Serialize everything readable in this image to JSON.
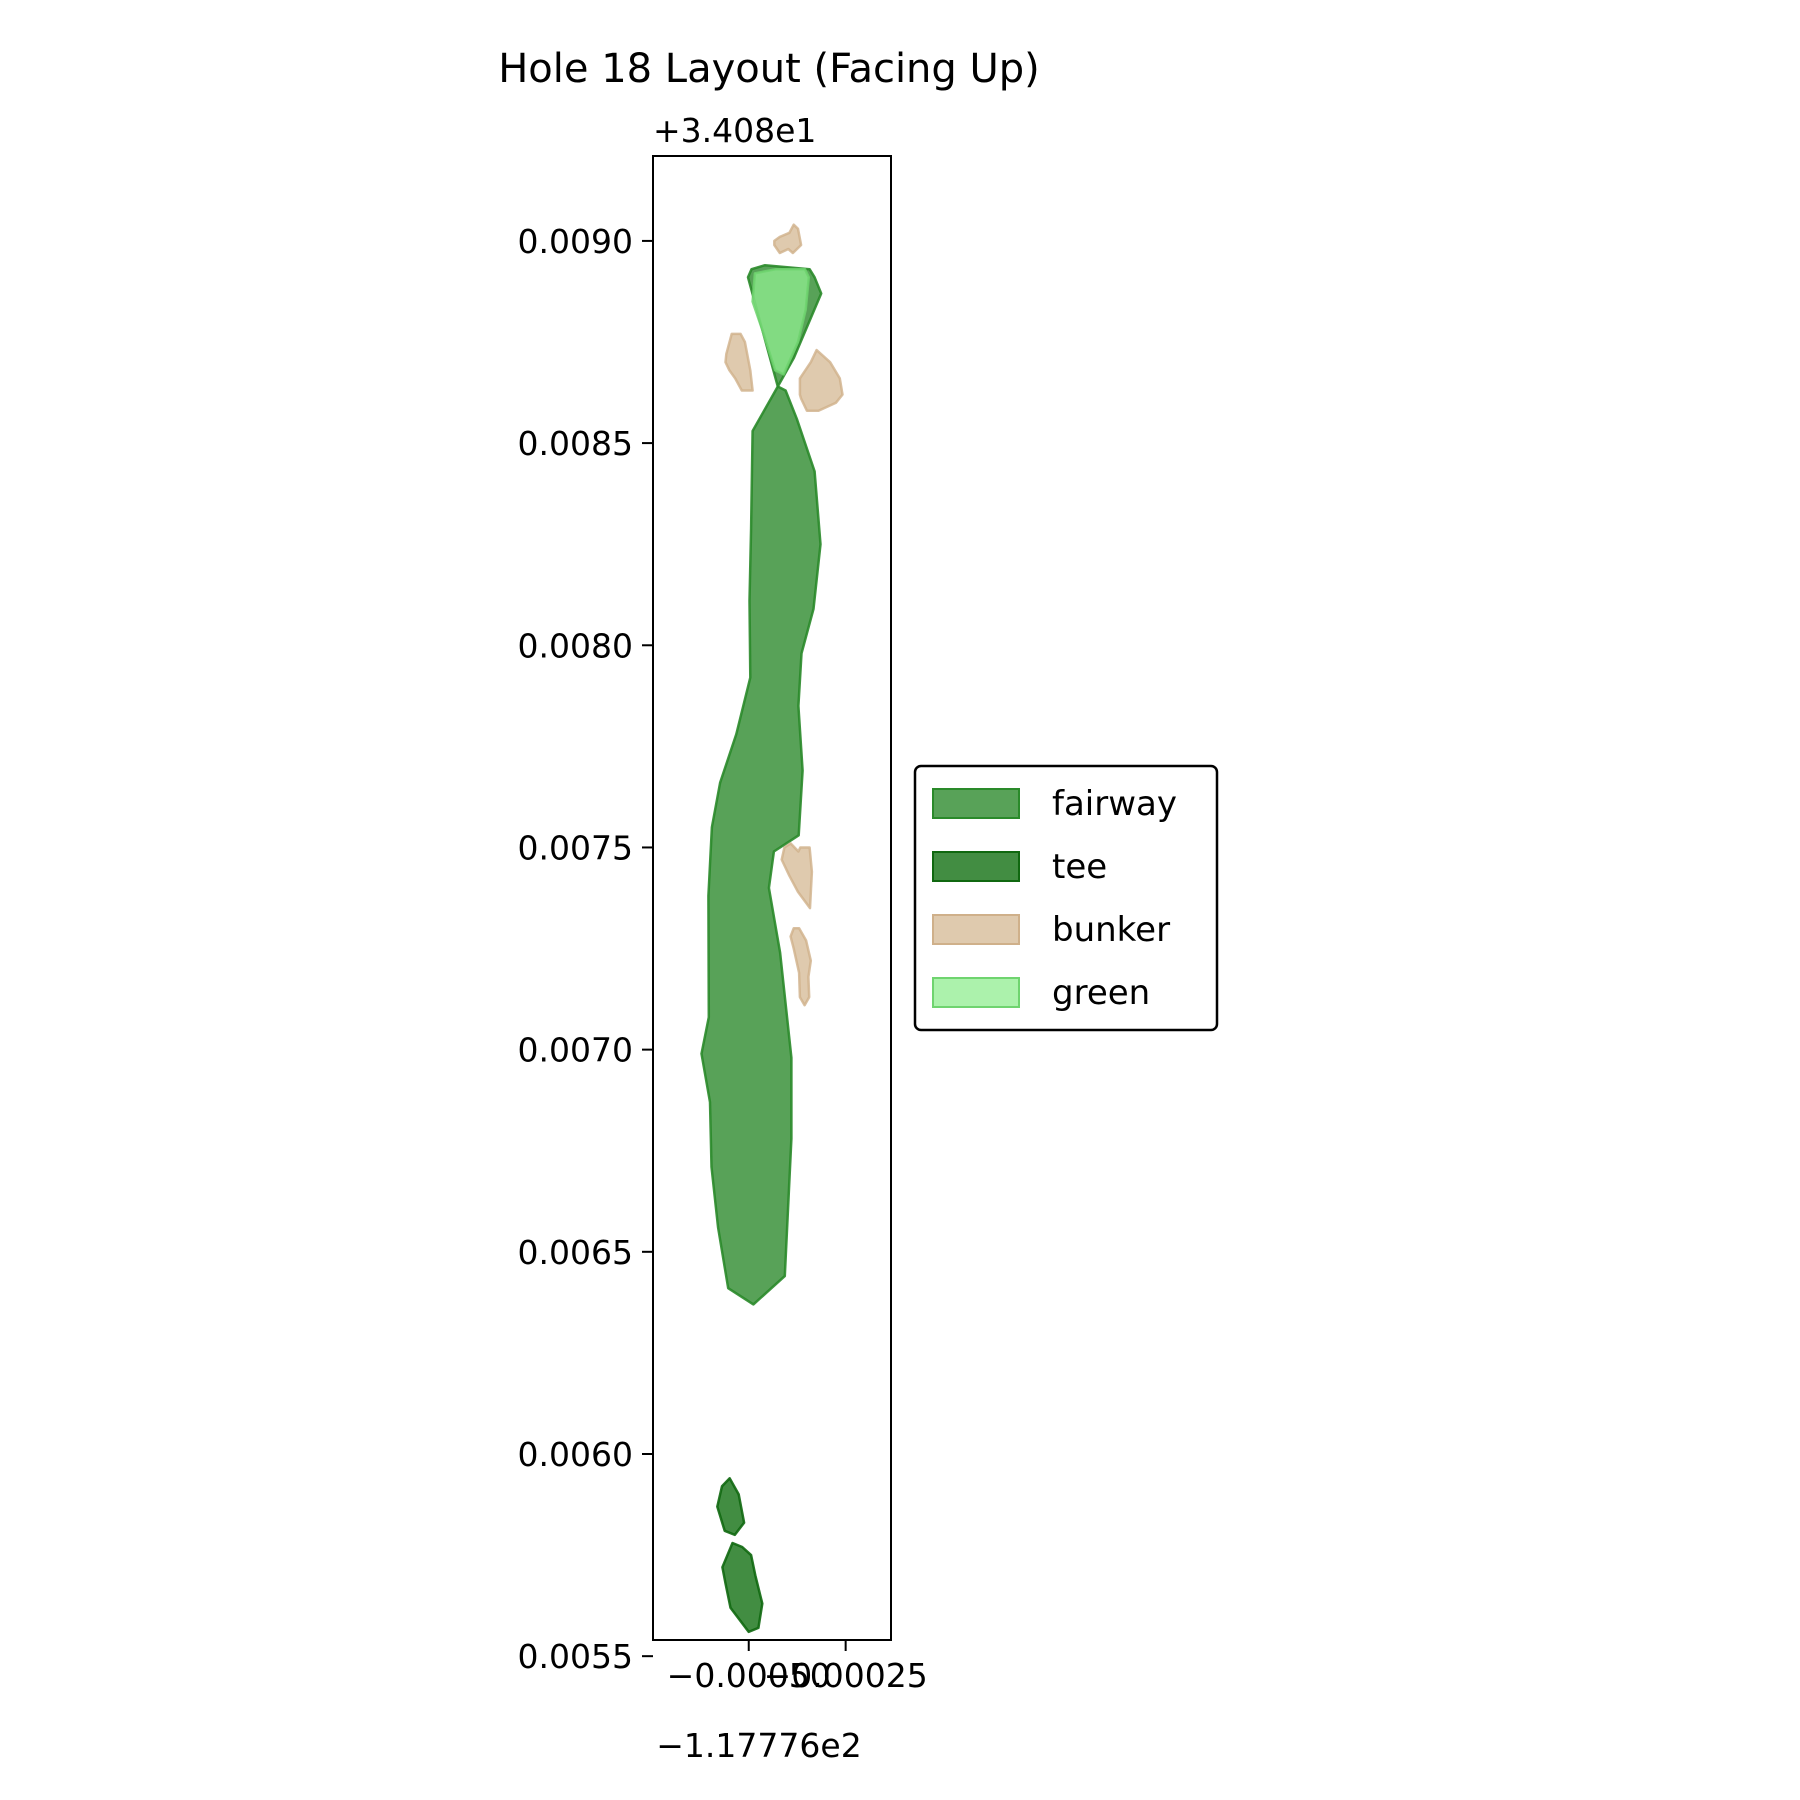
{
  "chart_data": {
    "type": "map",
    "title": "Hole 18 Layout (Facing Up)",
    "xlabel": "",
    "ylabel": "",
    "x_offset_label": "−1.17776e2",
    "y_offset_label": "+3.408e1",
    "x_ticks": [
      {
        "value": -0.0005,
        "label": "−0.00050"
      },
      {
        "value": -0.00025,
        "label": "−0.00025"
      }
    ],
    "y_ticks": [
      {
        "value": 0.0055,
        "label": "0.0055"
      },
      {
        "value": 0.006,
        "label": "0.0060"
      },
      {
        "value": 0.0065,
        "label": "0.0065"
      },
      {
        "value": 0.007,
        "label": "0.0070"
      },
      {
        "value": 0.0075,
        "label": "0.0075"
      },
      {
        "value": 0.008,
        "label": "0.0080"
      },
      {
        "value": 0.0085,
        "label": "0.0085"
      },
      {
        "value": 0.009,
        "label": "0.0090"
      }
    ],
    "xlim": [
      -0.000747,
      -0.000133
    ],
    "ylim": [
      0.00554,
      0.00921
    ],
    "legend_position": "center right (outside plot)",
    "legend": [
      {
        "label": "fairway",
        "color": "#2e8b2e",
        "alpha": 0.8
      },
      {
        "label": "tee",
        "color": "#137013",
        "alpha": 0.8
      },
      {
        "label": "bunker",
        "color": "#d2b48c",
        "alpha": 0.7
      },
      {
        "label": "green",
        "color": "#90ee90",
        "alpha": 0.75
      }
    ],
    "shapes": [
      {
        "type": "fairway",
        "coords": [
          [
            -0.000425,
            0.00864
          ],
          [
            -0.00049,
            0.00853
          ],
          [
            -0.000494,
            0.00829
          ],
          [
            -0.000498,
            0.00811
          ],
          [
            -0.000496,
            0.00792
          ],
          [
            -0.000532,
            0.00778
          ],
          [
            -0.000574,
            0.00766
          ],
          [
            -0.000595,
            0.00755
          ],
          [
            -0.000604,
            0.00738
          ],
          [
            -0.000603,
            0.00708
          ],
          [
            -0.000622,
            0.00699
          ],
          [
            -0.0006,
            0.00687
          ],
          [
            -0.000596,
            0.00671
          ],
          [
            -0.000579,
            0.00656
          ],
          [
            -0.000553,
            0.00641
          ],
          [
            -0.000488,
            0.00637
          ],
          [
            -0.000407,
            0.00644
          ],
          [
            -0.00039,
            0.00678
          ],
          [
            -0.00039,
            0.00698
          ],
          [
            -0.000419,
            0.00724
          ],
          [
            -0.000448,
            0.0074
          ],
          [
            -0.000435,
            0.00749
          ],
          [
            -0.000371,
            0.00753
          ],
          [
            -0.000361,
            0.00769
          ],
          [
            -0.000372,
            0.00785
          ],
          [
            -0.000364,
            0.00798
          ],
          [
            -0.000333,
            0.00809
          ],
          [
            -0.000315,
            0.00825
          ],
          [
            -0.00033,
            0.00843
          ],
          [
            -0.000376,
            0.00856
          ],
          [
            -0.000405,
            0.00863
          ],
          [
            -0.000425,
            0.00864
          ]
        ]
      },
      {
        "type": "fairway",
        "coords": [
          [
            -0.000425,
            0.00864
          ],
          [
            -0.000502,
            0.00891
          ],
          [
            -0.000493,
            0.00893
          ],
          [
            -0.000458,
            0.00894
          ],
          [
            -0.000343,
            0.00893
          ],
          [
            -0.00033,
            0.00891
          ],
          [
            -0.000313,
            0.00887
          ],
          [
            -0.000384,
            0.00871
          ],
          [
            -0.000425,
            0.00864
          ]
        ]
      },
      {
        "type": "green",
        "coords": [
          [
            -0.000432,
            0.00868
          ],
          [
            -0.000465,
            0.00878
          ],
          [
            -0.00049,
            0.00885
          ],
          [
            -0.000484,
            0.00892
          ],
          [
            -0.00043,
            0.00893
          ],
          [
            -0.000355,
            0.00893
          ],
          [
            -0.000345,
            0.00891
          ],
          [
            -0.000353,
            0.00883
          ],
          [
            -0.000373,
            0.00875
          ],
          [
            -0.00041,
            0.00867
          ],
          [
            -0.000432,
            0.00868
          ]
        ]
      },
      {
        "type": "bunker",
        "coords": [
          [
            -0.000398,
            0.00898
          ],
          [
            -0.000386,
            0.00897
          ],
          [
            -0.000365,
            0.00899
          ],
          [
            -0.000373,
            0.00903
          ],
          [
            -0.000384,
            0.00904
          ],
          [
            -0.000395,
            0.00902
          ],
          [
            -0.00042,
            0.00901
          ],
          [
            -0.000434,
            0.009
          ],
          [
            -0.000434,
            0.00899
          ],
          [
            -0.00042,
            0.00897
          ],
          [
            -0.000398,
            0.00898
          ]
        ]
      },
      {
        "type": "bunker",
        "coords": [
          [
            -0.000518,
            0.00863
          ],
          [
            -0.00049,
            0.00863
          ],
          [
            -0.000496,
            0.00868
          ],
          [
            -0.00051,
            0.00875
          ],
          [
            -0.000521,
            0.00877
          ],
          [
            -0.000544,
            0.00877
          ],
          [
            -0.000558,
            0.00872
          ],
          [
            -0.00056,
            0.0087
          ],
          [
            -0.00055,
            0.00868
          ],
          [
            -0.000535,
            0.00866
          ],
          [
            -0.000518,
            0.00863
          ]
        ]
      },
      {
        "type": "bunker",
        "coords": [
          [
            -0.000365,
            0.00861
          ],
          [
            -0.00035,
            0.00858
          ],
          [
            -0.00032,
            0.00858
          ],
          [
            -0.000275,
            0.0086
          ],
          [
            -0.000258,
            0.00862
          ],
          [
            -0.000265,
            0.00866
          ],
          [
            -0.00029,
            0.0087
          ],
          [
            -0.000325,
            0.00873
          ],
          [
            -0.00034,
            0.0087
          ],
          [
            -0.000368,
            0.00866
          ],
          [
            -0.000368,
            0.00862
          ],
          [
            -0.000365,
            0.00861
          ]
        ]
      },
      {
        "type": "bunker",
        "coords": [
          [
            -0.000415,
            0.00747
          ],
          [
            -0.000395,
            0.00743
          ],
          [
            -0.000373,
            0.00739
          ],
          [
            -0.000342,
            0.00735
          ],
          [
            -0.000337,
            0.00744
          ],
          [
            -0.000343,
            0.0075
          ],
          [
            -0.000367,
            0.0075
          ],
          [
            -0.000372,
            0.00749
          ],
          [
            -0.000392,
            0.00751
          ],
          [
            -0.000408,
            0.0075
          ],
          [
            -0.000415,
            0.00747
          ]
        ]
      },
      {
        "type": "bunker",
        "coords": [
          [
            -0.000392,
            0.00728
          ],
          [
            -0.000384,
            0.00725
          ],
          [
            -0.00037,
            0.00719
          ],
          [
            -0.000368,
            0.00713
          ],
          [
            -0.000356,
            0.00711
          ],
          [
            -0.000344,
            0.00713
          ],
          [
            -0.000346,
            0.00718
          ],
          [
            -0.00034,
            0.00722
          ],
          [
            -0.000352,
            0.00727
          ],
          [
            -0.00037,
            0.0073
          ],
          [
            -0.000384,
            0.0073
          ],
          [
            -0.000392,
            0.00728
          ]
        ]
      },
      {
        "type": "tee",
        "coords": [
          [
            -0.000569,
            0.00592
          ],
          [
            -0.000549,
            0.00594
          ],
          [
            -0.000526,
            0.0059
          ],
          [
            -0.000512,
            0.00583
          ],
          [
            -0.000536,
            0.0058
          ],
          [
            -0.000562,
            0.00581
          ],
          [
            -0.000581,
            0.00587
          ],
          [
            -0.000569,
            0.00592
          ]
        ]
      },
      {
        "type": "tee",
        "coords": [
          [
            -0.000568,
            0.00572
          ],
          [
            -0.000542,
            0.00578
          ],
          [
            -0.000517,
            0.00577
          ],
          [
            -0.000494,
            0.00575
          ],
          [
            -0.000483,
            0.0057
          ],
          [
            -0.000465,
            0.00563
          ],
          [
            -0.000475,
            0.00557
          ],
          [
            -0.0005,
            0.00556
          ],
          [
            -0.000547,
            0.00562
          ],
          [
            -0.00056,
            0.00568
          ],
          [
            -0.000568,
            0.00572
          ]
        ]
      }
    ]
  }
}
